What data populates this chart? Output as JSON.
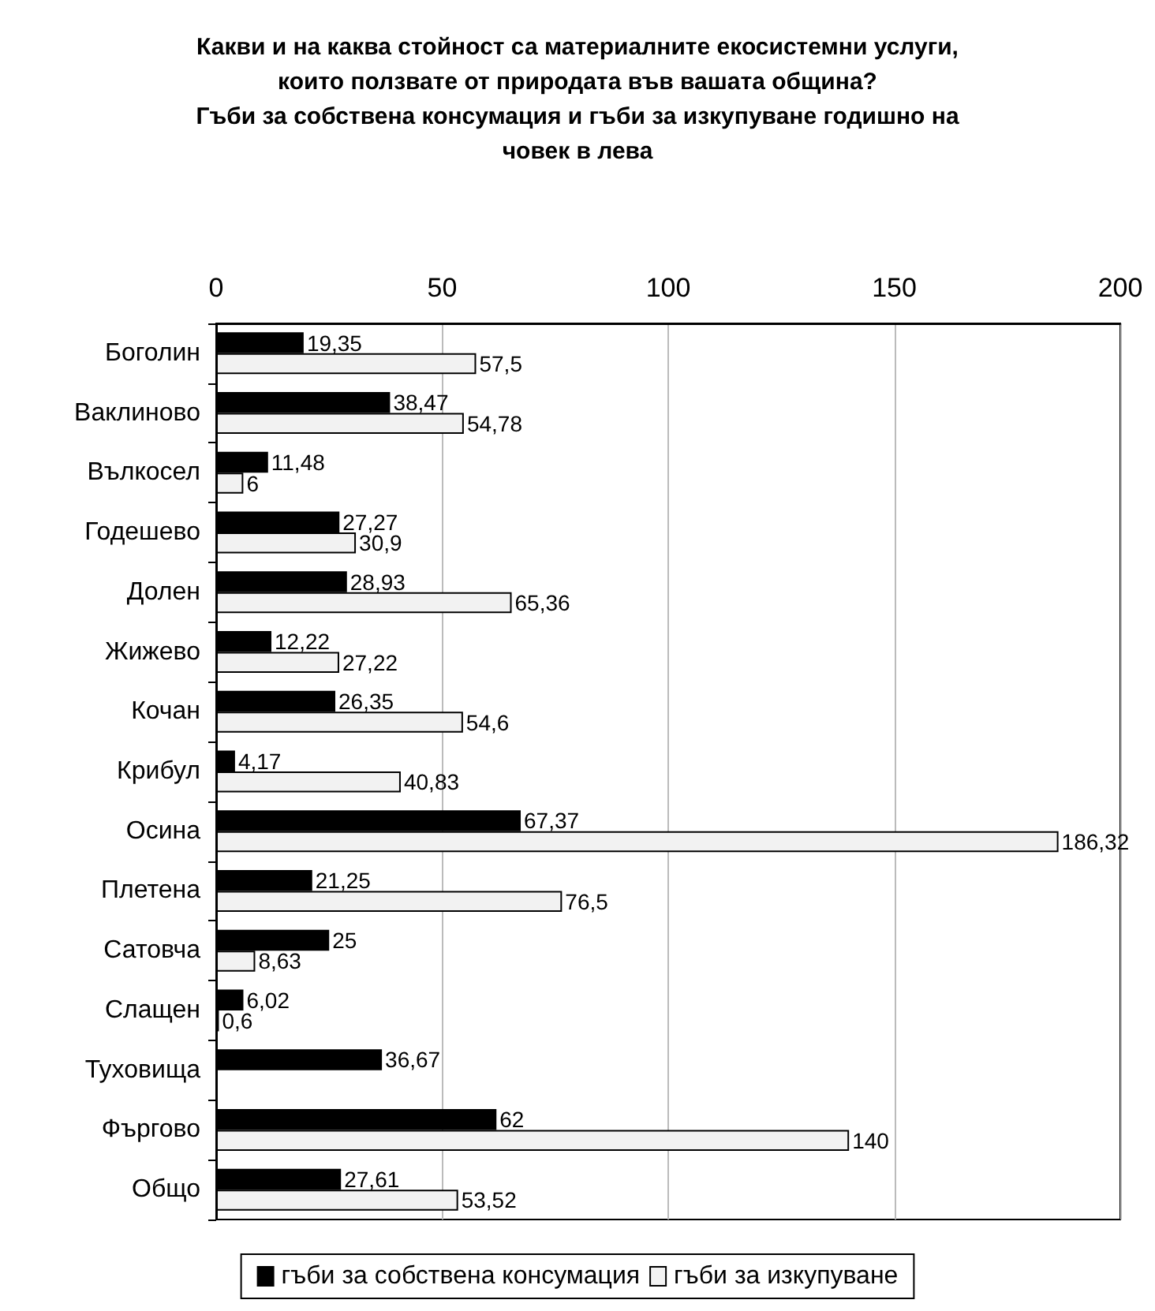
{
  "chart_data": {
    "type": "bar",
    "orientation": "horizontal",
    "title": "Какви и на каква стойност са материалните екосистемни услуги,\nкоито ползвате от природата във вашата община?\nГъби за собствена консумация и гъби за изкупуване годишно на\nчовек в лева",
    "categories": [
      "Боголин",
      "Ваклиново",
      "Вълкосел",
      "Годешево",
      "Долен",
      "Жижево",
      "Кочан",
      "Крибул",
      "Осина",
      "Плетена",
      "Сатовча",
      "Слащен",
      "Туховища",
      "Фъргово",
      "Общо"
    ],
    "series": [
      {
        "name": "гъби за собствена консумация",
        "color": "#000000",
        "values": [
          19.35,
          38.47,
          11.48,
          27.27,
          28.93,
          12.22,
          26.35,
          4.17,
          67.37,
          21.25,
          25,
          6.02,
          36.67,
          62,
          27.61
        ],
        "value_labels": [
          "19,35",
          "38,47",
          "11,48",
          "27,27",
          "28,93",
          "12,22",
          "26,35",
          "4,17",
          "67,37",
          "21,25",
          "25",
          "6,02",
          "36,67",
          "62",
          "27,61"
        ]
      },
      {
        "name": "гъби за изкупуване",
        "color": "#f2f2f2",
        "values": [
          57.5,
          54.78,
          6,
          30.9,
          65.36,
          27.22,
          54.6,
          40.83,
          186.32,
          76.5,
          8.63,
          0.6,
          null,
          140,
          53.52
        ],
        "value_labels": [
          "57,5",
          "54,78",
          "6",
          "30,9",
          "65,36",
          "27,22",
          "54,6",
          "40,83",
          "186,32",
          "76,5",
          "8,63",
          "0,6",
          null,
          "140",
          "53,52"
        ]
      }
    ],
    "xlim": [
      0,
      200
    ],
    "xticks": [
      0,
      50,
      100,
      150,
      200
    ],
    "grid": "x",
    "legend": "bottom"
  }
}
